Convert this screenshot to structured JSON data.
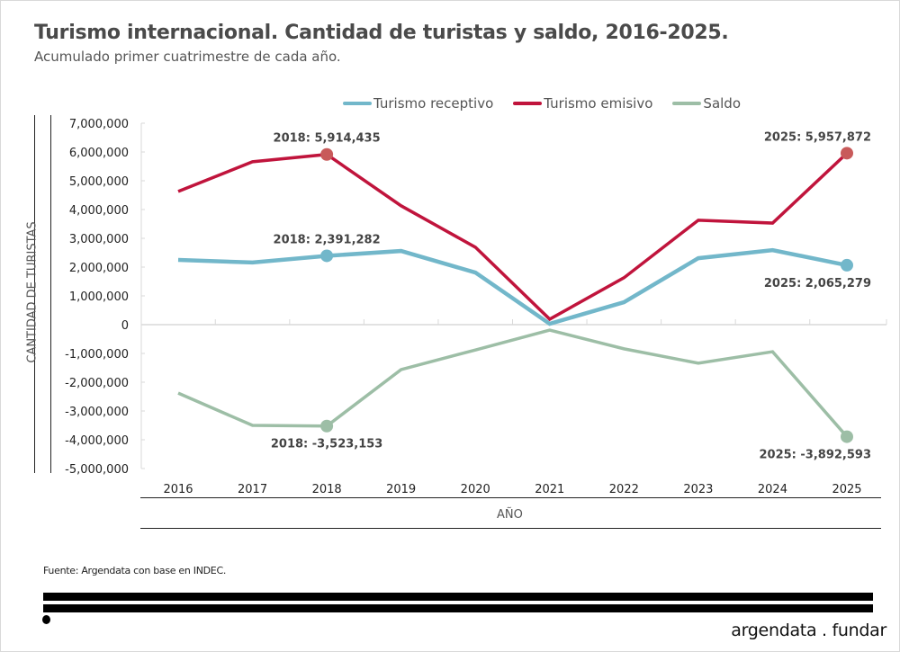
{
  "header": {
    "title": "Turismo internacional. Cantidad de turistas y saldo, 2016-2025.",
    "subtitle": "Acumulado primer cuatrimestre de cada año."
  },
  "footer": {
    "source": "Fuente: Argendata con base en INDEC.",
    "brand": "argendata . fundar"
  },
  "chart_data": {
    "type": "line",
    "title": "Turismo internacional. Cantidad de turistas y saldo, 2016-2025.",
    "subtitle": "Acumulado primer cuatrimestre de cada año.",
    "xlabel": "AÑO",
    "ylabel": "CANTIDAD DE TURISTAS",
    "x": [
      "2016",
      "2017",
      "2018",
      "2019",
      "2020",
      "2021",
      "2022",
      "2023",
      "2024",
      "2025"
    ],
    "ylim": [
      -5000000,
      7000000
    ],
    "yticks": [
      7000000,
      6000000,
      5000000,
      4000000,
      3000000,
      2000000,
      1000000,
      0,
      -1000000,
      -2000000,
      -3000000,
      -4000000,
      -5000000
    ],
    "ytick_labels": [
      "7,000,000",
      "6,000,000",
      "5,000,000",
      "4,000,000",
      "3,000,000",
      "2,000,000",
      "1,000,000",
      "0",
      "-1,000,000",
      "-2,000,000",
      "-3,000,000",
      "-4,000,000",
      "-5,000,000"
    ],
    "grid": false,
    "legend_position": "top-center",
    "series": [
      {
        "name": "Turismo receptivo",
        "color": "#72b7ca",
        "values": [
          2250000,
          2160000,
          2391282,
          2560000,
          1810000,
          30000,
          780000,
          2310000,
          2590000,
          2065279
        ],
        "markers": [
          {
            "index": 2,
            "label": "2018:  2,391,282",
            "label_pos": "above"
          },
          {
            "index": 9,
            "label": "2025: 2,065,279",
            "label_pos": "below"
          }
        ]
      },
      {
        "name": "Turismo emisivo",
        "color": "#c0143c",
        "marker_color": "#c85a5a",
        "values": [
          4630000,
          5660000,
          5914435,
          4130000,
          2690000,
          190000,
          1630000,
          3630000,
          3530000,
          5957872
        ],
        "markers": [
          {
            "index": 2,
            "label": "2018:  5,914,435",
            "label_pos": "above"
          },
          {
            "index": 9,
            "label": "2025:  5,957,872",
            "label_pos": "above"
          }
        ]
      },
      {
        "name": "Saldo",
        "color": "#9dbea6",
        "values": [
          -2380000,
          -3500000,
          -3523153,
          -1560000,
          -880000,
          -190000,
          -840000,
          -1340000,
          -940000,
          -3892593
        ],
        "markers": [
          {
            "index": 2,
            "label": "2018: -3,523,153",
            "label_pos": "below"
          },
          {
            "index": 9,
            "label": "2025: -3,892,593",
            "label_pos": "below"
          }
        ]
      }
    ]
  }
}
